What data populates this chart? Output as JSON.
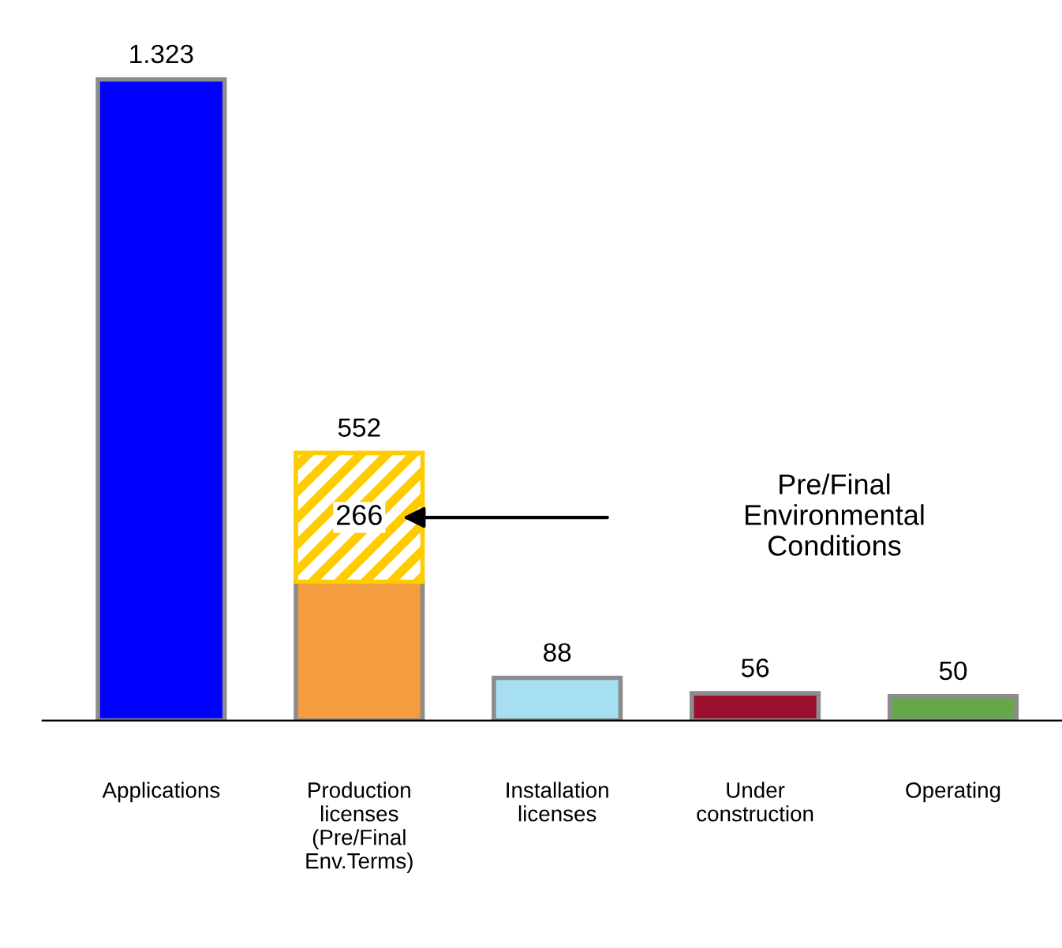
{
  "chart_data": {
    "type": "bar",
    "stacked": true,
    "categories": [
      "Applications",
      "Production\nlicenses\n(Pre/Final\nEnv.Terms)",
      "Installation\nlicenses",
      "Under\nconstruction",
      "Operating"
    ],
    "series": [
      {
        "colors": [
          "#0000ff",
          "#f39c40",
          "#a6def2",
          "#9c0f2c",
          "#67a74b"
        ],
        "values": [
          1323,
          286,
          88,
          56,
          50
        ]
      },
      {
        "color": "#ffcc00",
        "values": [
          null,
          266,
          null,
          null,
          null
        ],
        "value_labels": [
          null,
          "266",
          null,
          null,
          null
        ]
      }
    ],
    "totals": [
      "1.323",
      "552",
      "88",
      "56",
      "50"
    ],
    "annotations": [
      "Pre/Final\nEnvironmental\nConditions"
    ],
    "grid": false,
    "legend": false
  }
}
